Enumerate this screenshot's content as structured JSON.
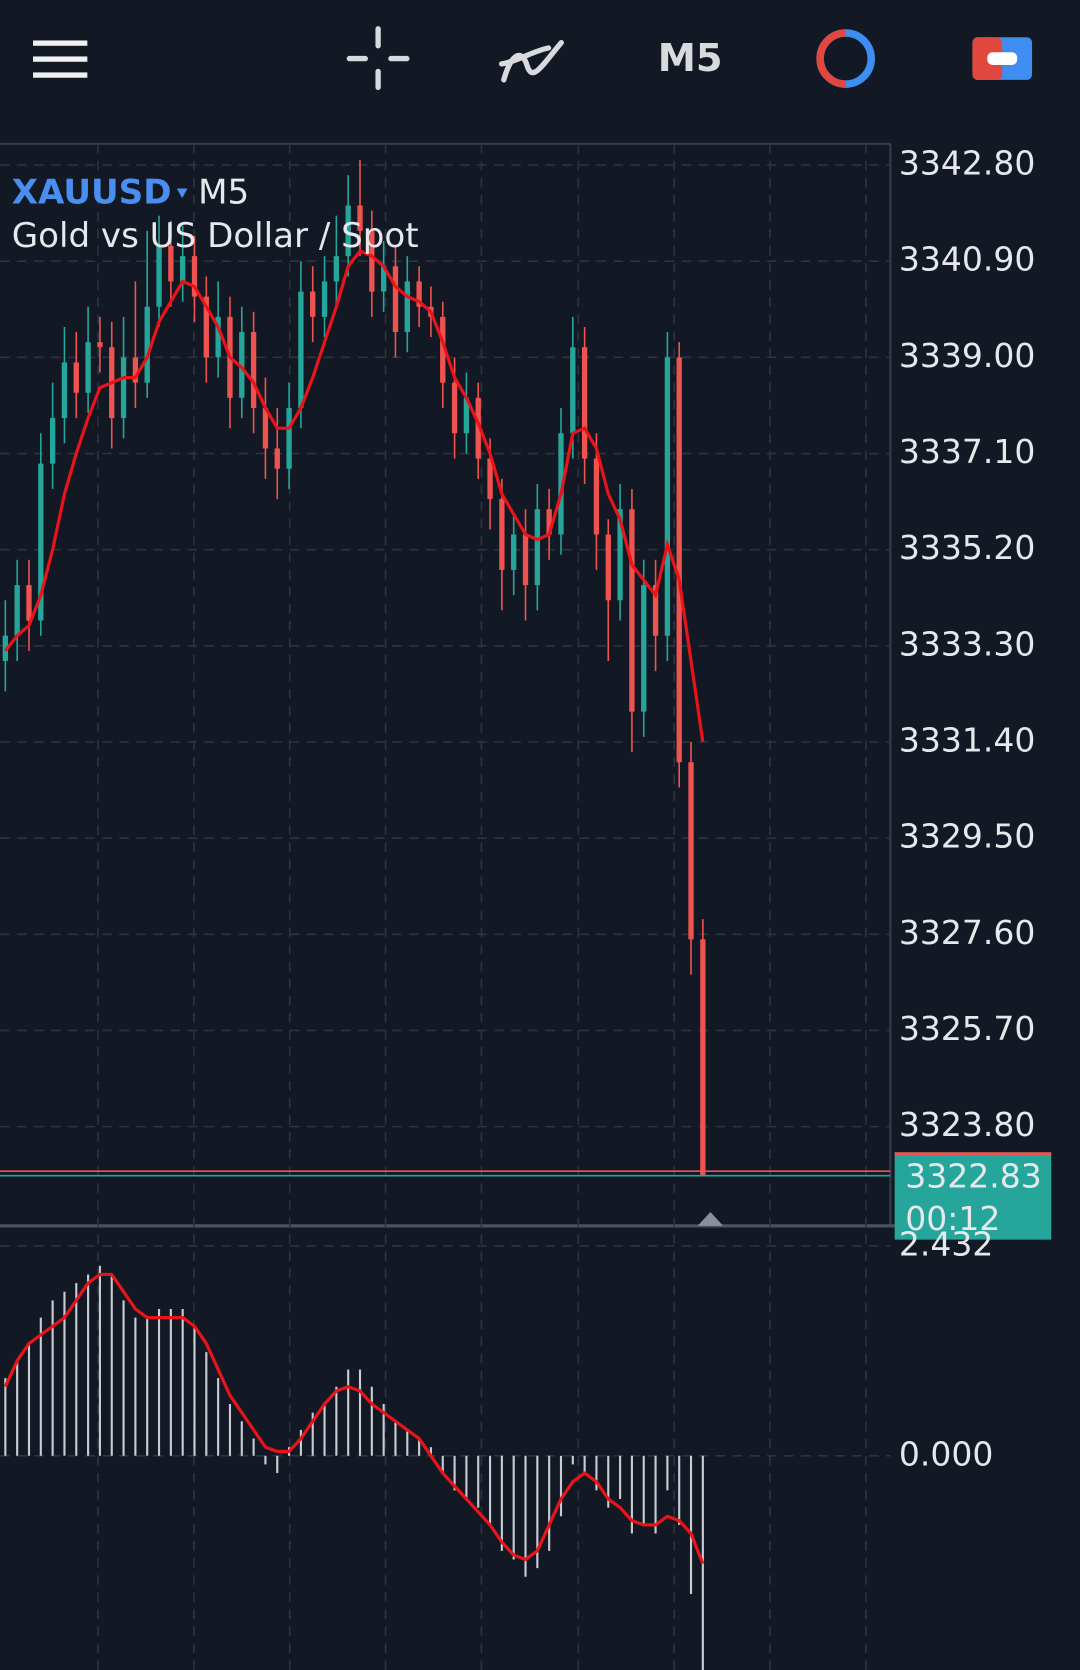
{
  "toolbar": {
    "timeframe": "M5"
  },
  "chart_data": [
    {
      "type": "candlestick",
      "symbol": "XAUUSD",
      "timeframe": "M5",
      "subtitle": "Gold vs US Dollar / Spot",
      "up_color": "#26a69a",
      "down_color": "#ef5350",
      "open": [
        3333.0,
        3333.5,
        3334.5,
        3333.8,
        3336.9,
        3337.8,
        3338.9,
        3338.3,
        3339.3,
        3339.2,
        3337.8,
        3339.0,
        3338.5,
        3340.0,
        3341.2,
        3340.5,
        3341.0,
        3340.2,
        3339.0,
        3339.8,
        3338.2,
        3339.5,
        3338.0,
        3337.2,
        3336.8,
        3338.0,
        3340.3,
        3339.8,
        3340.5,
        3341.0,
        3342.0,
        3341.5,
        3340.3,
        3340.8,
        3339.5,
        3340.5,
        3340.0,
        3339.8,
        3338.5,
        3337.5,
        3338.2,
        3337.0,
        3336.2,
        3334.8,
        3335.5,
        3334.5,
        3336.0,
        3335.5,
        3337.5,
        3339.2,
        3337.0,
        3335.5,
        3334.2,
        3336.0,
        3332.0,
        3334.5,
        3333.5,
        3339.0,
        3331.0,
        3327.5
      ],
      "high": [
        3334.2,
        3335.0,
        3335.0,
        3337.5,
        3338.5,
        3339.6,
        3339.5,
        3340.0,
        3339.8,
        3339.7,
        3339.8,
        3340.5,
        3341.5,
        3341.8,
        3341.7,
        3341.6,
        3341.4,
        3340.6,
        3340.5,
        3340.2,
        3340.0,
        3339.9,
        3338.6,
        3338.0,
        3338.5,
        3340.9,
        3340.8,
        3341.0,
        3341.8,
        3342.6,
        3342.9,
        3341.9,
        3341.3,
        3341.2,
        3341.0,
        3340.8,
        3340.4,
        3340.1,
        3339.0,
        3338.7,
        3338.5,
        3337.4,
        3336.6,
        3335.9,
        3336.0,
        3336.5,
        3336.4,
        3338.0,
        3339.8,
        3339.6,
        3337.5,
        3335.8,
        3336.5,
        3336.4,
        3335.0,
        3335.0,
        3339.5,
        3339.3,
        3331.4,
        3327.9
      ],
      "low": [
        3332.4,
        3333.0,
        3333.2,
        3333.5,
        3336.4,
        3337.3,
        3337.8,
        3337.9,
        3338.7,
        3337.2,
        3337.4,
        3338.0,
        3338.2,
        3339.6,
        3340.0,
        3340.1,
        3339.7,
        3338.5,
        3338.6,
        3337.6,
        3337.8,
        3337.5,
        3336.6,
        3336.2,
        3336.4,
        3337.6,
        3339.3,
        3339.4,
        3340.0,
        3340.6,
        3341.0,
        3339.8,
        3339.9,
        3339.0,
        3339.1,
        3339.6,
        3339.4,
        3338.0,
        3337.0,
        3337.1,
        3336.6,
        3335.6,
        3334.0,
        3334.3,
        3333.8,
        3334.0,
        3335.0,
        3335.1,
        3337.0,
        3336.5,
        3334.8,
        3333.0,
        3333.8,
        3331.2,
        3331.5,
        3332.8,
        3333.0,
        3330.5,
        3326.8,
        3322.83
      ],
      "close": [
        3333.5,
        3334.5,
        3333.8,
        3336.9,
        3337.8,
        3338.9,
        3338.3,
        3339.3,
        3339.2,
        3337.8,
        3339.0,
        3338.5,
        3340.0,
        3341.2,
        3340.5,
        3341.0,
        3340.2,
        3339.0,
        3339.8,
        3338.2,
        3339.5,
        3338.0,
        3337.2,
        3336.8,
        3338.0,
        3340.3,
        3339.8,
        3340.5,
        3341.0,
        3342.0,
        3341.5,
        3340.3,
        3340.8,
        3339.5,
        3340.5,
        3340.0,
        3339.8,
        3338.5,
        3337.5,
        3338.2,
        3337.0,
        3336.2,
        3334.8,
        3335.5,
        3334.5,
        3336.0,
        3335.5,
        3337.5,
        3339.2,
        3337.0,
        3335.5,
        3334.2,
        3336.0,
        3332.0,
        3334.5,
        3333.5,
        3339.0,
        3331.0,
        3327.5,
        3322.83
      ],
      "ma": {
        "color": "#e8141a",
        "values": [
          3333.2,
          3333.5,
          3333.7,
          3334.3,
          3335.2,
          3336.3,
          3337.1,
          3337.8,
          3338.4,
          3338.5,
          3338.6,
          3338.6,
          3339.0,
          3339.7,
          3340.1,
          3340.5,
          3340.4,
          3340.0,
          3339.6,
          3339.0,
          3338.8,
          3338.5,
          3338.0,
          3337.6,
          3337.6,
          3338.0,
          3338.6,
          3339.3,
          3340.0,
          3340.8,
          3341.1,
          3341.0,
          3340.8,
          3340.4,
          3340.2,
          3340.1,
          3339.9,
          3339.3,
          3338.6,
          3338.2,
          3337.7,
          3337.1,
          3336.3,
          3335.9,
          3335.5,
          3335.4,
          3335.5,
          3336.3,
          3337.5,
          3337.6,
          3337.2,
          3336.3,
          3335.8,
          3334.9,
          3334.6,
          3334.3,
          3335.3,
          3334.6,
          3333.0,
          3331.4
        ]
      },
      "ylim": [
        3321.86,
        3343.22
      ],
      "yticks": [
        {
          "value": 3342.8,
          "label": "3342.80"
        },
        {
          "value": 3340.9,
          "label": "3340.90"
        },
        {
          "value": 3339.0,
          "label": "3339.00"
        },
        {
          "value": 3337.1,
          "label": "3337.10"
        },
        {
          "value": 3335.2,
          "label": "3335.20"
        },
        {
          "value": 3333.3,
          "label": "3333.30"
        },
        {
          "value": 3331.4,
          "label": "3331.40"
        },
        {
          "value": 3329.5,
          "label": "3329.50"
        },
        {
          "value": 3327.6,
          "label": "3327.60"
        },
        {
          "value": 3325.7,
          "label": "3325.70"
        },
        {
          "value": 3323.8,
          "label": "3323.80"
        }
      ],
      "grid": true,
      "last_price": {
        "value": 3322.83,
        "label": "3322.83"
      },
      "ask_line": 3322.92,
      "countdown": "00:12"
    },
    {
      "type": "histogram",
      "series": [
        {
          "color": "#c8ccd2",
          "values": [
            0.9,
            1.1,
            1.3,
            1.6,
            1.8,
            1.9,
            2.0,
            2.1,
            2.2,
            2.1,
            1.8,
            1.6,
            1.6,
            1.7,
            1.7,
            1.7,
            1.5,
            1.2,
            0.9,
            0.6,
            0.4,
            0.2,
            -0.1,
            -0.2,
            0.1,
            0.3,
            0.5,
            0.6,
            0.8,
            1.0,
            1.0,
            0.8,
            0.6,
            0.4,
            0.3,
            0.2,
            0.1,
            -0.2,
            -0.4,
            -0.5,
            -0.6,
            -0.8,
            -1.1,
            -1.2,
            -1.4,
            -1.3,
            -1.1,
            -0.7,
            -0.1,
            -0.2,
            -0.4,
            -0.6,
            -0.5,
            -0.9,
            -0.8,
            -0.9,
            -0.4,
            -0.8,
            -1.6,
            -2.5
          ]
        },
        {
          "color": "#e8141a",
          "values": [
            0.8,
            1.1,
            1.3,
            1.4,
            1.5,
            1.6,
            1.8,
            2.0,
            2.1,
            2.1,
            1.9,
            1.7,
            1.6,
            1.6,
            1.6,
            1.6,
            1.5,
            1.3,
            1.0,
            0.7,
            0.5,
            0.3,
            0.1,
            0.05,
            0.05,
            0.2,
            0.4,
            0.6,
            0.75,
            0.8,
            0.75,
            0.6,
            0.5,
            0.4,
            0.3,
            0.2,
            0.0,
            -0.2,
            -0.35,
            -0.5,
            -0.65,
            -0.8,
            -1.0,
            -1.15,
            -1.2,
            -1.1,
            -0.8,
            -0.5,
            -0.3,
            -0.2,
            -0.3,
            -0.5,
            -0.6,
            -0.75,
            -0.8,
            -0.8,
            -0.7,
            -0.75,
            -0.9,
            -1.25
          ]
        }
      ],
      "ylim": [
        -2.48,
        2.65
      ],
      "yticks": [
        2.432,
        {
          "value": 0,
          "label": "0.000"
        }
      ],
      "grid": true
    }
  ]
}
